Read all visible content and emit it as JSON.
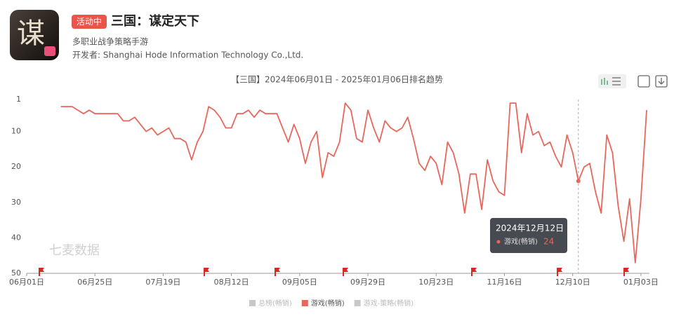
{
  "header": {
    "badge": "活动中",
    "title": "三国：谋定天下",
    "subtitle": "多职业战争策略手游",
    "developer": "开发者: Shanghai Hode Information Technology Co.,Ltd."
  },
  "chart_data": {
    "type": "line",
    "title": "【三国】2024年06月01日 - 2025年01月06日排名趋势",
    "watermark": "七麦数据",
    "x": [
      "06月01日",
      "06月03日",
      "06月05日",
      "06月07日",
      "06月09日",
      "06月11日",
      "06月13日",
      "06月15日",
      "06月17日",
      "06月19日",
      "06月21日",
      "06月23日",
      "06月25日",
      "06月27日",
      "06月29日",
      "07月01日",
      "07月03日",
      "07月05日",
      "07月07日",
      "07月09日",
      "07月11日",
      "07月13日",
      "07月15日",
      "07月17日",
      "07月19日",
      "07月21日",
      "07月23日",
      "07月25日",
      "07月27日",
      "07月29日",
      "07月31日",
      "08月02日",
      "08月04日",
      "08月06日",
      "08月08日",
      "08月10日",
      "08月12日",
      "08月14日",
      "08月16日",
      "08月18日",
      "08月20日",
      "08月22日",
      "08月24日",
      "08月26日",
      "08月28日",
      "08月30日",
      "09月01日",
      "09月03日",
      "09月05日",
      "09月07日",
      "09月09日",
      "09月11日",
      "09月13日",
      "09月15日",
      "09月17日",
      "09月19日",
      "09月21日",
      "09月23日",
      "09月25日",
      "09月27日",
      "09月29日",
      "10月01日",
      "10月03日",
      "10月05日",
      "10月07日",
      "10月09日",
      "10月11日",
      "10月13日",
      "10月15日",
      "10月17日",
      "10月19日",
      "10月21日",
      "10月23日",
      "10月25日",
      "10月27日",
      "10月29日",
      "10月31日",
      "11月02日",
      "11月04日",
      "11月06日",
      "11月08日",
      "11月10日",
      "11月12日",
      "11月14日",
      "11月16日",
      "11月18日",
      "11月20日",
      "11月22日",
      "11月24日",
      "11月26日",
      "11月28日",
      "11月30日",
      "12月02日",
      "12月04日",
      "12月06日",
      "12月08日",
      "12月10日",
      "12月12日",
      "12月14日",
      "12月16日",
      "12月18日",
      "12月20日",
      "12月22日",
      "12月24日",
      "12月26日",
      "12月28日",
      "12月30日",
      "01月01日",
      "01月03日",
      "01月05日"
    ],
    "series": [
      {
        "name": "游戏(畅销)",
        "color": "#e8675c",
        "values": [
          null,
          null,
          null,
          null,
          null,
          null,
          3,
          3,
          3,
          4,
          5,
          4,
          5,
          5,
          5,
          5,
          5,
          7,
          7,
          6,
          8,
          10,
          9,
          11,
          10,
          9,
          12,
          12,
          13,
          18,
          13,
          10,
          3,
          4,
          6,
          9,
          9,
          5,
          5,
          4,
          6,
          4,
          5,
          5,
          5,
          9,
          13,
          8,
          12,
          19,
          13,
          10,
          23,
          16,
          17,
          13,
          2,
          4,
          12,
          13,
          4,
          9,
          13,
          7,
          9,
          10,
          9,
          6,
          12,
          19,
          21,
          17,
          19,
          25,
          13,
          16,
          22,
          33,
          22,
          22,
          32,
          18,
          24,
          27,
          28,
          2,
          2,
          16,
          5,
          11,
          10,
          14,
          13,
          17,
          20,
          11,
          16,
          24,
          20,
          19,
          27,
          33,
          11,
          16,
          31,
          41,
          29,
          47,
          29,
          4
        ]
      }
    ],
    "inactive_series": [
      "总榜(畅销)",
      "游戏-策略(畅销)"
    ],
    "inactive_color": "#c8c8c8",
    "xticks": [
      "06月01日",
      "06月25日",
      "07月19日",
      "08月12日",
      "09月05日",
      "09月29日",
      "10月23日",
      "11月16日",
      "12月10日",
      "01月03日"
    ],
    "ylim": [
      50,
      1
    ],
    "yticks": [
      1,
      10,
      20,
      30,
      40,
      50
    ],
    "tooltip": {
      "title": "2024年12月12日"
    }
  }
}
